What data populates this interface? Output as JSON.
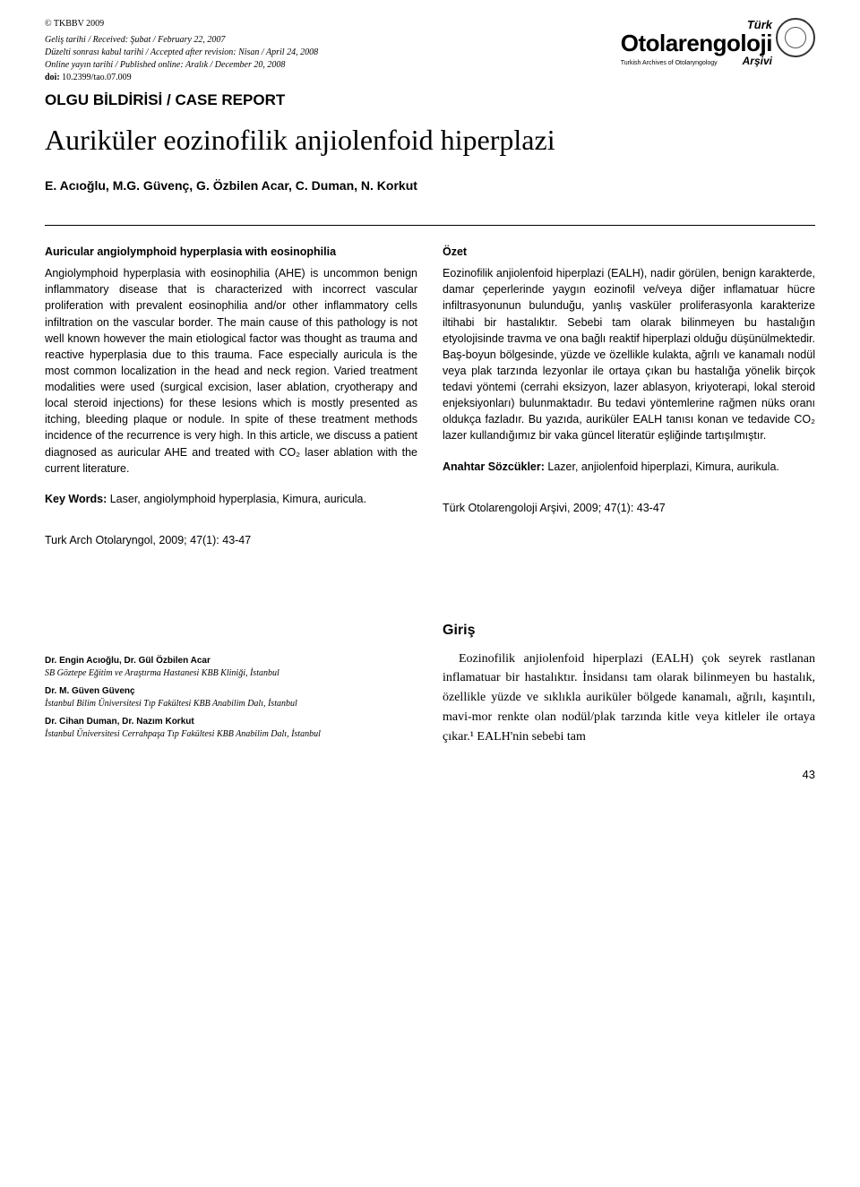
{
  "meta": {
    "copyright": "© TKBBV 2009",
    "received": "Geliş tarihi / Received: Şubat / February 22, 2007",
    "revised": "Düzelti sonrası kabul tarihi / Accepted after revision: Nisan / April 24, 2008",
    "published": "Online yayın tarihi / Published online: Aralık / December 20, 2008",
    "doi_label": "doi:",
    "doi_value": "10.2399/tao.07.009"
  },
  "journal": {
    "turk": "Türk",
    "main": "Otolarengoloji",
    "sub": "Turkish Archives of Otolaryngology",
    "arsivi": "Arşivi"
  },
  "report_type": "OLGU BİLDİRİSİ / CASE REPORT",
  "title": "Auriküler eozinofilik anjiolenfoid hiperplazi",
  "authors": "E. Acıoğlu, M.G. Güvenç, G. Özbilen Acar, C. Duman, N. Korkut",
  "abstract_en": {
    "title": "Auricular angiolymphoid hyperplasia with eosinophilia",
    "body": "Angiolymphoid hyperplasia with eosinophilia (AHE) is uncommon benign inflammatory disease that is characterized with incorrect vascular proliferation with prevalent eosinophilia and/or other inflammatory cells infiltration on the vascular border. The main cause of this pathology is not well known however the main etiological factor was thought as trauma and reactive hyperplasia due to this trauma. Face especially auricula is the most common localization in the head and neck region. Varied treatment modalities were used (surgical excision, laser ablation, cryotherapy and local steroid injections) for these lesions which is mostly presented as itching, bleeding plaque or nodule. In spite of these treatment methods incidence of the recurrence is very high. In this article, we discuss a patient diagnosed as auricular AHE and treated with CO₂ laser ablation with the current literature.",
    "keywords_label": "Key Words:",
    "keywords": "Laser, angiolymphoid hyperplasia, Kimura, auricula.",
    "citation": "Turk Arch Otolaryngol, 2009; 47(1): 43-47"
  },
  "abstract_tr": {
    "title": "Özet",
    "body": "Eozinofilik anjiolenfoid hiperplazi (EALH), nadir görülen, benign karakterde, damar çeperlerinde yaygın eozinofil ve/veya diğer inflamatuar hücre infiltrasyonunun bulunduğu, yanlış vasküler proliferasyonla karakterize iltihabi bir hastalıktır. Sebebi tam olarak bilinmeyen bu hastalığın etyolojisinde travma ve ona bağlı reaktif hiperplazi olduğu düşünülmektedir. Baş-boyun bölgesinde, yüzde ve özellikle kulakta, ağrılı ve kanamalı nodül veya plak tarzında lezyonlar ile ortaya çıkan bu hastalığa yönelik birçok tedavi yöntemi (cerrahi eksizyon, lazer ablasyon, kriyoterapi, lokal steroid enjeksiyonları) bulunmaktadır. Bu tedavi yöntemlerine rağmen nüks oranı oldukça fazladır. Bu yazıda, auriküler EALH tanısı konan ve tedavide CO₂ lazer kullandığımız bir vaka güncel literatür eşliğinde tartışılmıştır.",
    "keywords_label": "Anahtar Sözcükler:",
    "keywords": "Lazer, anjiolenfoid hiperplazi, Kimura, aurikula.",
    "citation": "Türk Otolarengoloji Arşivi, 2009; 47(1): 43-47"
  },
  "affiliations": [
    {
      "name": "Dr. Engin Acıoğlu, Dr. Gül Özbilen Acar",
      "inst": "SB Göztepe Eğitim ve Araştırma Hastanesi KBB Kliniği, İstanbul"
    },
    {
      "name": "Dr. M. Güven Güvenç",
      "inst": "İstanbul Bilim Üniversitesi Tıp Fakültesi KBB Anabilim Dalı, İstanbul"
    },
    {
      "name": "Dr. Cihan Duman, Dr. Nazım Korkut",
      "inst": "İstanbul Üniversitesi Cerrahpaşa Tıp Fakültesi KBB Anabilim Dalı, İstanbul"
    }
  ],
  "intro": {
    "heading": "Giriş",
    "para": "Eozinofilik anjiolenfoid hiperplazi (EALH) çok seyrek rastlanan inflamatuar bir hastalıktır. İnsidansı tam olarak bilinmeyen bu hastalık, özellikle yüzde ve sıklıkla auriküler bölgede kanamalı, ağrılı, kaşıntılı, mavi-mor renkte olan nodül/plak tarzında kitle veya kitleler ile ortaya çıkar.¹ EALH'nin sebebi tam"
  },
  "page_number": "43"
}
